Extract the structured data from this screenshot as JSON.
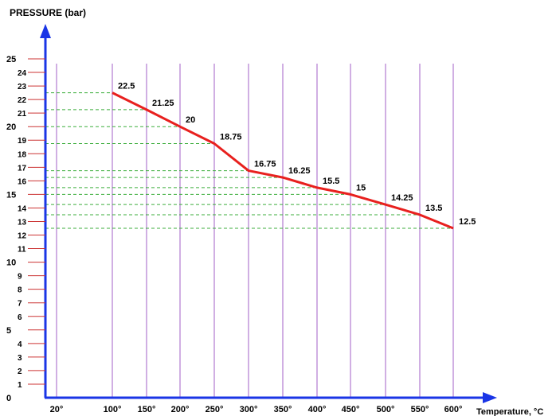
{
  "chart_data": {
    "type": "line",
    "ylabel": "PRESSURE (bar)",
    "xlabel": "Temperature, °C",
    "x_categories": [
      "20°",
      "100°",
      "150°",
      "200°",
      "250°",
      "300°",
      "350°",
      "400°",
      "450°",
      "500°",
      "550°",
      "600°"
    ],
    "x_values": [
      20,
      100,
      150,
      200,
      250,
      300,
      350,
      400,
      450,
      500,
      550,
      600
    ],
    "y_ticks": [
      0,
      1,
      2,
      3,
      4,
      5,
      6,
      7,
      8,
      9,
      10,
      11,
      12,
      13,
      14,
      15,
      16,
      17,
      18,
      19,
      20,
      21,
      22,
      23,
      24,
      25
    ],
    "ylim": [
      0,
      25
    ],
    "series": [
      {
        "x": [
          100,
          150,
          200,
          250,
          300,
          350,
          400,
          450,
          500,
          550,
          600
        ],
        "y": [
          22.5,
          21.25,
          20,
          18.75,
          16.75,
          16.25,
          15.5,
          15,
          14.25,
          13.5,
          12.5
        ],
        "labels": [
          "22.5",
          "21.25",
          "20",
          "18.75",
          "16.75",
          "16.25",
          "15.5",
          "15",
          "14.25",
          "13.5",
          "12.5"
        ]
      }
    ],
    "grid": "vertical lines at x ticks; dashed horizontal guides at data values",
    "colors": {
      "line": "#e8201e",
      "axis": "#1a35e6",
      "vgrid": "#b27ad0",
      "hguide": "#3cae3c",
      "ytick": "#cc3333"
    }
  }
}
